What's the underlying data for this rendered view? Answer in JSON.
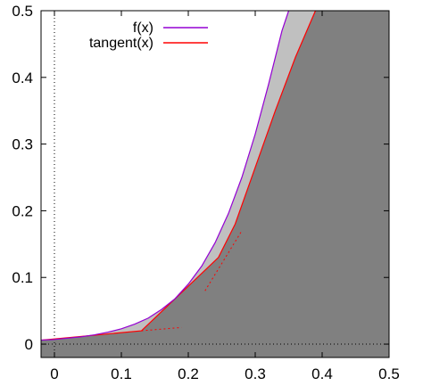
{
  "chart_data": {
    "type": "area",
    "title": "",
    "xlabel": "",
    "ylabel": "",
    "xlim": [
      -0.02,
      0.5
    ],
    "ylim": [
      -0.02,
      0.5
    ],
    "grid": false,
    "legend_position": "top-center",
    "x_ticks": [
      "0",
      "0.1",
      "0.2",
      "0.3",
      "0.4",
      "0.5"
    ],
    "y_ticks": [
      "0",
      "0.1",
      "0.2",
      "0.3",
      "0.4",
      "0.5"
    ],
    "x_tick_values": [
      0,
      0.1,
      0.2,
      0.3,
      0.4,
      0.5
    ],
    "y_tick_values": [
      0,
      0.1,
      0.2,
      0.3,
      0.4,
      0.5
    ],
    "series": [
      {
        "name": "f(x)",
        "color": "#9400d3",
        "x": [
          -0.02,
          0.0,
          0.02,
          0.04,
          0.06,
          0.08,
          0.1,
          0.12,
          0.14,
          0.16,
          0.18,
          0.2,
          0.22,
          0.24,
          0.26,
          0.28,
          0.3,
          0.32,
          0.34,
          0.35
        ],
        "y": [
          0.006,
          0.007,
          0.009,
          0.011,
          0.014,
          0.018,
          0.023,
          0.03,
          0.039,
          0.052,
          0.068,
          0.09,
          0.117,
          0.152,
          0.196,
          0.25,
          0.315,
          0.39,
          0.47,
          0.5
        ]
      },
      {
        "name": "tangent(x)",
        "color": "#ff0000",
        "x": [
          -0.02,
          0.13,
          0.245,
          0.27,
          0.3,
          0.33,
          0.36,
          0.39
        ],
        "y": [
          0.006,
          0.02,
          0.13,
          0.18,
          0.265,
          0.35,
          0.43,
          0.5
        ]
      }
    ],
    "fill_colors": {
      "under_tangent": "#808080",
      "between_curves": "#c0c0c0"
    },
    "tangent_segments": [
      {
        "x": [
          0.13,
          0.19
        ],
        "y": [
          0.02,
          0.025
        ]
      },
      {
        "x": [
          0.225,
          0.28
        ],
        "y": [
          0.08,
          0.17
        ]
      }
    ],
    "zero_lines": {
      "x": 0,
      "y": 0
    }
  }
}
